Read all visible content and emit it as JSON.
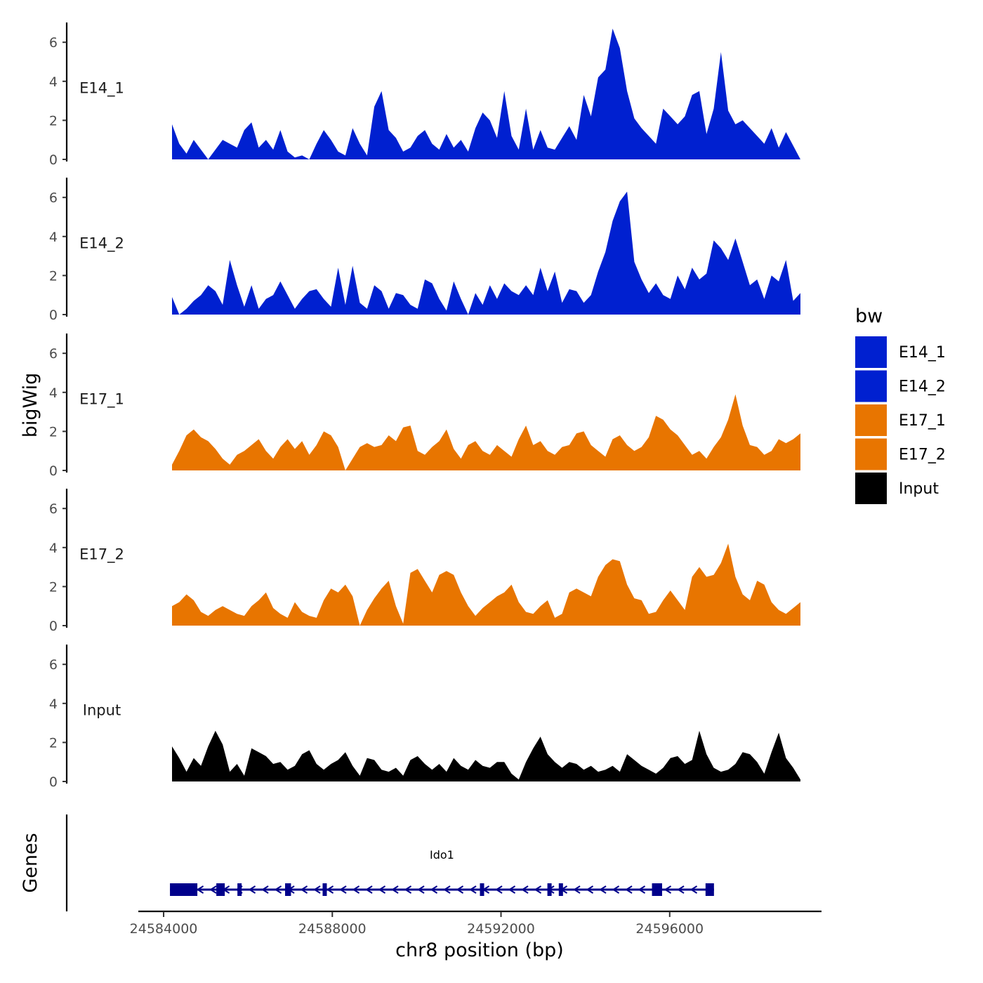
{
  "chart_data": {
    "type": "area",
    "y_axis_title": "bigWig",
    "x_axis_title": "chr8 position (bp)",
    "genes_track_label": "Genes",
    "ylim": [
      0,
      7
    ],
    "y_ticks": [
      0,
      2,
      4,
      6
    ],
    "y_tick_labels": [
      "0",
      "2",
      "4",
      "6"
    ],
    "xlim": [
      24583400,
      24599600
    ],
    "x_ticks": [
      24584000,
      24588000,
      24592000,
      24596000
    ],
    "x_tick_labels": [
      "24584000",
      "24588000",
      "24592000",
      "24596000"
    ],
    "region_start": 24584200,
    "region_end": 24599100,
    "legend": {
      "title": "bw",
      "entries": [
        {
          "label": "E14_1",
          "color": "#0020D0"
        },
        {
          "label": "E14_2",
          "color": "#0020D0"
        },
        {
          "label": "E17_1",
          "color": "#E87500"
        },
        {
          "label": "E17_2",
          "color": "#E87500"
        },
        {
          "label": "Input",
          "color": "#000000"
        }
      ]
    },
    "series": [
      {
        "name": "E14_1",
        "color": "#0020D0",
        "values": [
          1.8,
          0.8,
          0.3,
          1.0,
          0.5,
          0.0,
          0.5,
          1.0,
          0.8,
          0.6,
          1.5,
          1.9,
          0.6,
          1.0,
          0.5,
          1.5,
          0.4,
          0.1,
          0.2,
          -0.1,
          0.8,
          1.5,
          1.0,
          0.4,
          0.2,
          1.6,
          0.8,
          0.2,
          2.7,
          3.5,
          1.5,
          1.1,
          0.4,
          0.6,
          1.2,
          1.5,
          0.8,
          0.5,
          1.3,
          0.6,
          1.0,
          0.4,
          1.6,
          2.4,
          2.0,
          1.1,
          3.5,
          1.2,
          0.5,
          2.6,
          0.5,
          1.5,
          0.6,
          0.5,
          1.1,
          1.7,
          1.0,
          3.3,
          2.2,
          4.2,
          4.6,
          6.7,
          5.7,
          3.5,
          2.1,
          1.6,
          1.2,
          0.8,
          2.6,
          2.2,
          1.8,
          2.2,
          3.3,
          3.5,
          1.3,
          2.6,
          5.5,
          2.5,
          1.8,
          2.0,
          1.6,
          1.2,
          0.8,
          1.6,
          0.6,
          1.4,
          0.7,
          0.0
        ]
      },
      {
        "name": "E14_2",
        "color": "#0020D0",
        "values": [
          0.9,
          0.0,
          0.3,
          0.7,
          1.0,
          1.5,
          1.2,
          0.5,
          2.8,
          1.5,
          0.4,
          1.5,
          0.3,
          0.8,
          1.0,
          1.7,
          1.0,
          0.3,
          0.8,
          1.2,
          1.3,
          0.8,
          0.4,
          2.4,
          0.5,
          2.5,
          0.6,
          0.3,
          1.5,
          1.2,
          0.3,
          1.1,
          1.0,
          0.5,
          0.3,
          1.8,
          1.6,
          0.8,
          0.2,
          1.7,
          0.8,
          0.0,
          1.1,
          0.5,
          1.5,
          0.8,
          1.6,
          1.2,
          1.0,
          1.5,
          1.0,
          2.4,
          1.2,
          2.2,
          0.6,
          1.3,
          1.2,
          0.6,
          1.0,
          2.2,
          3.2,
          4.8,
          5.8,
          6.3,
          2.7,
          1.8,
          1.1,
          1.6,
          1.0,
          0.8,
          2.0,
          1.3,
          2.4,
          1.8,
          2.1,
          3.8,
          3.4,
          2.8,
          3.9,
          2.7,
          1.5,
          1.8,
          0.8,
          2.0,
          1.7,
          2.8,
          0.7,
          1.1
        ]
      },
      {
        "name": "E17_1",
        "color": "#E87500",
        "values": [
          0.3,
          1.0,
          1.8,
          2.1,
          1.7,
          1.5,
          1.1,
          0.6,
          0.3,
          0.8,
          1.0,
          1.3,
          1.6,
          1.0,
          0.6,
          1.2,
          1.6,
          1.1,
          1.5,
          0.8,
          1.3,
          2.0,
          1.8,
          1.2,
          0.0,
          0.6,
          1.2,
          1.4,
          1.2,
          1.3,
          1.8,
          1.5,
          2.2,
          2.3,
          1.0,
          0.8,
          1.2,
          1.5,
          2.1,
          1.1,
          0.6,
          1.3,
          1.5,
          1.0,
          0.8,
          1.3,
          1.0,
          0.7,
          1.6,
          2.3,
          1.3,
          1.5,
          1.0,
          0.8,
          1.2,
          1.3,
          1.9,
          2.0,
          1.3,
          1.0,
          0.7,
          1.6,
          1.8,
          1.3,
          1.0,
          1.2,
          1.7,
          2.8,
          2.6,
          2.1,
          1.8,
          1.3,
          0.8,
          1.0,
          0.6,
          1.2,
          1.7,
          2.6,
          3.9,
          2.3,
          1.3,
          1.2,
          0.8,
          1.0,
          1.6,
          1.4,
          1.6,
          1.9
        ]
      },
      {
        "name": "E17_2",
        "color": "#E87500",
        "values": [
          1.0,
          1.2,
          1.6,
          1.3,
          0.7,
          0.5,
          0.8,
          1.0,
          0.8,
          0.6,
          0.5,
          1.0,
          1.3,
          1.7,
          0.9,
          0.6,
          0.4,
          1.2,
          0.7,
          0.5,
          0.4,
          1.3,
          1.9,
          1.7,
          2.1,
          1.5,
          0.0,
          0.8,
          1.4,
          1.9,
          2.3,
          1.0,
          0.1,
          2.7,
          2.9,
          2.3,
          1.7,
          2.6,
          2.8,
          2.6,
          1.7,
          1.0,
          0.5,
          0.9,
          1.2,
          1.5,
          1.7,
          2.1,
          1.2,
          0.7,
          0.6,
          1.0,
          1.3,
          0.4,
          0.6,
          1.7,
          1.9,
          1.7,
          1.5,
          2.5,
          3.1,
          3.4,
          3.3,
          2.1,
          1.4,
          1.3,
          0.6,
          0.7,
          1.3,
          1.8,
          1.3,
          0.8,
          2.5,
          3.0,
          2.5,
          2.6,
          3.2,
          4.2,
          2.5,
          1.6,
          1.3,
          2.3,
          2.1,
          1.2,
          0.8,
          0.6,
          0.9,
          1.2
        ]
      },
      {
        "name": "Input",
        "color": "#000000",
        "values": [
          1.8,
          1.2,
          0.5,
          1.2,
          0.8,
          1.8,
          2.6,
          1.9,
          0.5,
          0.9,
          0.3,
          1.7,
          1.5,
          1.3,
          0.9,
          1.0,
          0.6,
          0.8,
          1.4,
          1.6,
          0.9,
          0.6,
          0.9,
          1.1,
          1.5,
          0.8,
          0.3,
          1.2,
          1.1,
          0.6,
          0.5,
          0.7,
          0.3,
          1.1,
          1.3,
          0.9,
          0.6,
          0.9,
          0.5,
          1.2,
          0.8,
          0.6,
          1.1,
          0.8,
          0.7,
          1.0,
          1.0,
          0.4,
          0.1,
          1.0,
          1.7,
          2.3,
          1.4,
          1.0,
          0.7,
          1.0,
          0.9,
          0.6,
          0.8,
          0.5,
          0.6,
          0.8,
          0.5,
          1.4,
          1.1,
          0.8,
          0.6,
          0.4,
          0.7,
          1.2,
          1.3,
          0.9,
          1.1,
          2.6,
          1.4,
          0.7,
          0.5,
          0.6,
          0.9,
          1.5,
          1.4,
          1.0,
          0.4,
          1.5,
          2.5,
          1.2,
          0.7,
          0.1
        ]
      }
    ],
    "genes": [
      {
        "name": "Ido1",
        "strand": "-",
        "color": "#00008B",
        "start": 24584150,
        "end": 24597050,
        "exons": [
          {
            "start": 24584150,
            "end": 24584800
          },
          {
            "start": 24585250,
            "end": 24585450
          },
          {
            "start": 24585750,
            "end": 24585850
          },
          {
            "start": 24586880,
            "end": 24587020
          },
          {
            "start": 24587770,
            "end": 24587870
          },
          {
            "start": 24591500,
            "end": 24591600
          },
          {
            "start": 24593100,
            "end": 24593200
          },
          {
            "start": 24593370,
            "end": 24593470
          },
          {
            "start": 24595580,
            "end": 24595820
          },
          {
            "start": 24596850,
            "end": 24597050
          }
        ]
      }
    ]
  }
}
